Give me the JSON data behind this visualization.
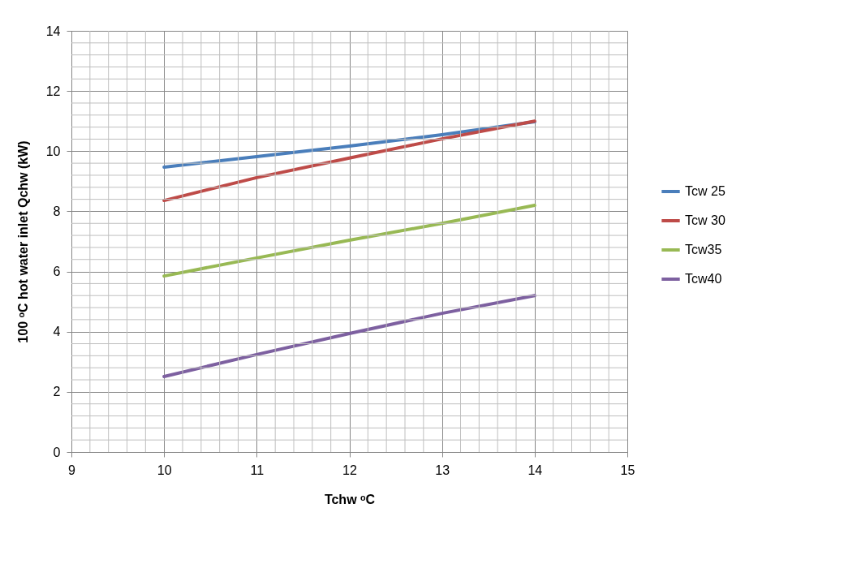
{
  "chart_data": {
    "type": "line",
    "xlabel": "Tchw ᵒC",
    "ylabel": "100 ᵒC hot water inlet Qchw (kW)",
    "x": [
      10,
      11,
      12,
      13,
      14
    ],
    "series": [
      {
        "name": "Tcw 25",
        "color": "#4a7ebb",
        "values": [
          9.47,
          9.82,
          10.17,
          10.55,
          10.98
        ]
      },
      {
        "name": "Tcw 30",
        "color": "#be4b48",
        "values": [
          8.36,
          9.12,
          9.77,
          10.41,
          11.0
        ]
      },
      {
        "name": "Tcw35",
        "color": "#98b954",
        "values": [
          5.85,
          6.45,
          7.04,
          7.6,
          8.2
        ]
      },
      {
        "name": "Tcw40",
        "color": "#7d60a0",
        "values": [
          2.51,
          3.24,
          3.94,
          4.61,
          5.2
        ]
      }
    ],
    "xlim": [
      9,
      15
    ],
    "xticks": [
      9,
      10,
      11,
      12,
      13,
      14,
      15
    ],
    "ylim": [
      0,
      14
    ],
    "yticks": [
      0,
      2,
      4,
      6,
      8,
      10,
      12,
      14
    ],
    "grid": true,
    "legend": "right",
    "marker": "none",
    "line_style": "solid"
  }
}
